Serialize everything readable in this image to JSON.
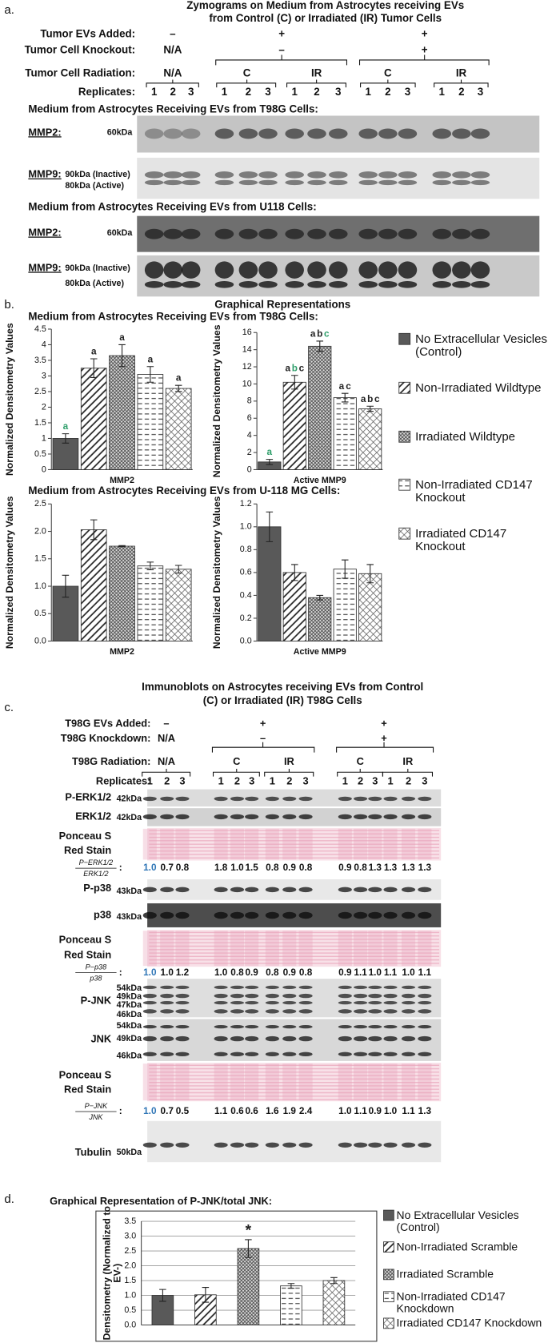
{
  "panel_a": {
    "label": "a.",
    "title": [
      "Zymograms on Medium from Astrocytes receiving EVs",
      "from Control (C) or Irradiated (IR) Tumor Cells"
    ],
    "row_labels": [
      "Tumor EVs Added:",
      "Tumor Cell Knockout:",
      "Tumor Cell Radiation:",
      "Replicates:"
    ],
    "evs_added": [
      "–",
      "+",
      "+"
    ],
    "knockout": [
      "N/A",
      "–",
      "+"
    ],
    "radiation": [
      "N/A",
      "C",
      "IR",
      "C",
      "IR"
    ],
    "replicates": [
      1,
      2,
      3,
      1,
      2,
      3,
      1,
      2,
      3,
      1,
      2,
      3,
      1,
      2,
      3
    ],
    "sections": [
      {
        "title": "Medium from Astrocytes Receiving EVs from T98G Cells:",
        "blots": [
          {
            "name": "MMP2:",
            "markers": [
              "60kDa"
            ]
          },
          {
            "name": "MMP9:",
            "markers": [
              "90kDa (Inactive)",
              "80kDa  (Active)"
            ]
          }
        ]
      },
      {
        "title": "Medium from Astrocytes Receiving EVs from U118 Cells:",
        "blots": [
          {
            "name": "MMP2:",
            "markers": [
              "60kDa"
            ]
          },
          {
            "name": "MMP9:",
            "markers": [
              "90kDa (Inactive)",
              "80kDa  (Active)"
            ]
          }
        ]
      }
    ]
  },
  "panel_b": {
    "label": "b.",
    "title": "Graphical Representations",
    "sections": [
      "Medium from Astrocytes Receiving EVs from T98G Cells:",
      "Medium from Astrocytes Receiving EVs from U-118 MG Cells:"
    ],
    "legend": [
      "No Extracellular Vesicles (Control)",
      "Non-Irradiated Wildtype",
      "Irradiated Wildtype",
      "Non-Irradiated CD147 Knockout",
      "Irradiated CD147 Knockout"
    ]
  },
  "panel_c": {
    "label": "c.",
    "title": [
      "Immunoblots on Astrocytes receiving EVs from Control",
      "(C) or Irradiated (IR) T98G Cells"
    ],
    "row_labels": [
      "T98G EVs Added:",
      "T98G Knockdown:",
      "T98G Radiation:",
      "Replicates:"
    ],
    "evs_added": [
      "–",
      "+",
      "+"
    ],
    "knockdown": [
      "N/A",
      "–",
      "+"
    ],
    "radiation": [
      "N/A",
      "C",
      "IR",
      "C",
      "IR"
    ],
    "replicates": [
      1,
      2,
      3,
      1,
      2,
      3,
      1,
      2,
      3,
      1,
      2,
      3,
      1,
      2,
      3
    ],
    "rows": [
      {
        "name": [
          "P-ERK1/2"
        ],
        "markers": [
          "42kDa"
        ]
      },
      {
        "name": [
          "ERK1/2"
        ],
        "markers": [
          "42kDa"
        ]
      },
      {
        "name": [
          "Ponceau S",
          "Red Stain"
        ],
        "markers": []
      },
      {
        "name": [
          "P-p38"
        ],
        "markers": [
          "43kDa"
        ]
      },
      {
        "name": [
          "p38"
        ],
        "markers": [
          "43kDa"
        ]
      },
      {
        "name": [
          "Ponceau S",
          "Red Stain"
        ],
        "markers": []
      },
      {
        "name": [
          "P-JNK"
        ],
        "markers": [
          "54kDa",
          "49kDa",
          "47kDa",
          "46kDa"
        ]
      },
      {
        "name": [
          "JNK"
        ],
        "markers": [
          "54kDa",
          "49kDa",
          "46kDa"
        ]
      },
      {
        "name": [
          "Ponceau S",
          "Red Stain"
        ],
        "markers": []
      },
      {
        "name": [
          "Tubulin"
        ],
        "markers": [
          "50kDa"
        ]
      }
    ],
    "ratios": [
      {
        "numerator": "P−ERK1/2",
        "denominator": "ERK1/2",
        "values": [
          "1.0",
          "0.7",
          "0.8",
          "1.8",
          "1.0",
          "1.5",
          "0.8",
          "0.9",
          "0.8",
          "0.9",
          "0.8",
          "1.3",
          "1.3",
          "1.3",
          "1.3"
        ]
      },
      {
        "numerator": "P−p38",
        "denominator": "p38",
        "values": [
          "1.0",
          "1.0",
          "1.2",
          "1.0",
          "0.8",
          "0.9",
          "0.8",
          "0.9",
          "0.8",
          "0.9",
          "1.1",
          "1.0",
          "1.1",
          "1.0",
          "1.1"
        ]
      },
      {
        "numerator": "P−JNK",
        "denominator": "JNK",
        "values": [
          "1.0",
          "0.7",
          "0.5",
          "1.1",
          "0.6",
          "0.6",
          "1.6",
          "1.9",
          "2.4",
          "1.0",
          "1.1",
          "0.9",
          "1.0",
          "1.1",
          "1.3"
        ]
      }
    ]
  },
  "panel_d": {
    "label": "d.",
    "title": "Graphical Representation of P-JNK/total JNK:",
    "legend": [
      "No Extracellular Vesicles (Control)",
      "Non-Irradiated Scramble",
      "Irradiated Scramble",
      "Non-Irradiated CD147 Knockdown",
      "Irradiated CD147 Knockdown"
    ]
  },
  "chart_data": [
    {
      "type": "bar",
      "xlabel": "MMP2",
      "ylabel": "Normalized Densitometry Values",
      "values": [
        1.0,
        3.25,
        3.65,
        3.05,
        2.6
      ],
      "errors": [
        0.15,
        0.3,
        0.35,
        0.25,
        0.1
      ],
      "ylim": [
        0,
        4.5
      ],
      "yticks": [
        0,
        0.5,
        1,
        1.5,
        2,
        2.5,
        3,
        3.5,
        4,
        4.5
      ],
      "grid": false,
      "annotations": [
        [
          {
            "text": "a",
            "color": "#2e9e6a"
          }
        ],
        [
          {
            "text": "a",
            "color": "#222222"
          }
        ],
        [
          {
            "text": "a",
            "color": "#222222"
          }
        ],
        [
          {
            "text": "a",
            "color": "#222222"
          }
        ],
        [
          {
            "text": "a",
            "color": "#222222"
          }
        ]
      ]
    },
    {
      "type": "bar",
      "xlabel": "Active MMP9",
      "ylabel": "Normalized Densitometry Values",
      "values": [
        0.9,
        10.2,
        14.4,
        8.4,
        7.1
      ],
      "errors": [
        0.3,
        0.8,
        0.6,
        0.5,
        0.3
      ],
      "ylim": [
        0,
        16
      ],
      "yticks": [
        0,
        2,
        4,
        6,
        8,
        10,
        12,
        14,
        16
      ],
      "grid": false,
      "annotations": [
        [
          {
            "text": "a",
            "color": "#2e9e6a"
          }
        ],
        [
          {
            "text": "a",
            "color": "#222222"
          },
          {
            "text": "b",
            "color": "#2e9e6a"
          },
          {
            "text": "c",
            "color": "#222222"
          }
        ],
        [
          {
            "text": "a",
            "color": "#222222"
          },
          {
            "text": "b",
            "color": "#222222"
          },
          {
            "text": "c",
            "color": "#2e9e6a"
          }
        ],
        [
          {
            "text": "a",
            "color": "#222222"
          },
          {
            "text": "c",
            "color": "#222222"
          }
        ],
        [
          {
            "text": "a",
            "color": "#222222"
          },
          {
            "text": "b",
            "color": "#222222"
          },
          {
            "text": "c",
            "color": "#222222"
          }
        ]
      ]
    },
    {
      "type": "bar",
      "xlabel": "MMP2",
      "ylabel": "Normalized Densitometry Values",
      "values": [
        1.0,
        2.03,
        1.73,
        1.37,
        1.31
      ],
      "errors": [
        0.2,
        0.18,
        0.01,
        0.07,
        0.07
      ],
      "ylim": [
        0,
        2.5
      ],
      "yticks": [
        {
          "value": 0,
          "label": "0.0"
        },
        0.5,
        {
          "value": 1,
          "label": "1.0"
        },
        1.5,
        {
          "value": 2,
          "label": "2.0"
        },
        2.5
      ],
      "grid": false
    },
    {
      "type": "bar",
      "xlabel": "Active MMP9",
      "ylabel": "Normalized Densitometry Values",
      "values": [
        1.0,
        0.6,
        0.38,
        0.63,
        0.59
      ],
      "errors": [
        0.13,
        0.07,
        0.02,
        0.08,
        0.08
      ],
      "ylim": [
        0,
        1.2
      ],
      "yticks": [
        {
          "value": 0,
          "label": "0.0"
        },
        0.2,
        0.4,
        0.6,
        0.8,
        {
          "value": 1,
          "label": "1.0"
        },
        1.2
      ],
      "grid": false
    },
    {
      "type": "bar",
      "ylabel": "Densitometry (Normalized to EV-)",
      "values": [
        1.0,
        1.02,
        2.58,
        1.32,
        1.5
      ],
      "errors": [
        0.2,
        0.25,
        0.3,
        0.08,
        0.1
      ],
      "ylim": [
        0,
        3.5
      ],
      "yticks": [
        {
          "value": 0,
          "label": "0.0"
        },
        0.5,
        {
          "value": 1,
          "label": "1.0"
        },
        1.5,
        {
          "value": 2,
          "label": "2.0"
        },
        2.5,
        {
          "value": 3,
          "label": "3.0"
        },
        3.5
      ],
      "grid": true,
      "annotations": [
        [],
        [],
        [
          {
            "text": "*",
            "color": "#222222"
          }
        ],
        [],
        []
      ]
    }
  ]
}
